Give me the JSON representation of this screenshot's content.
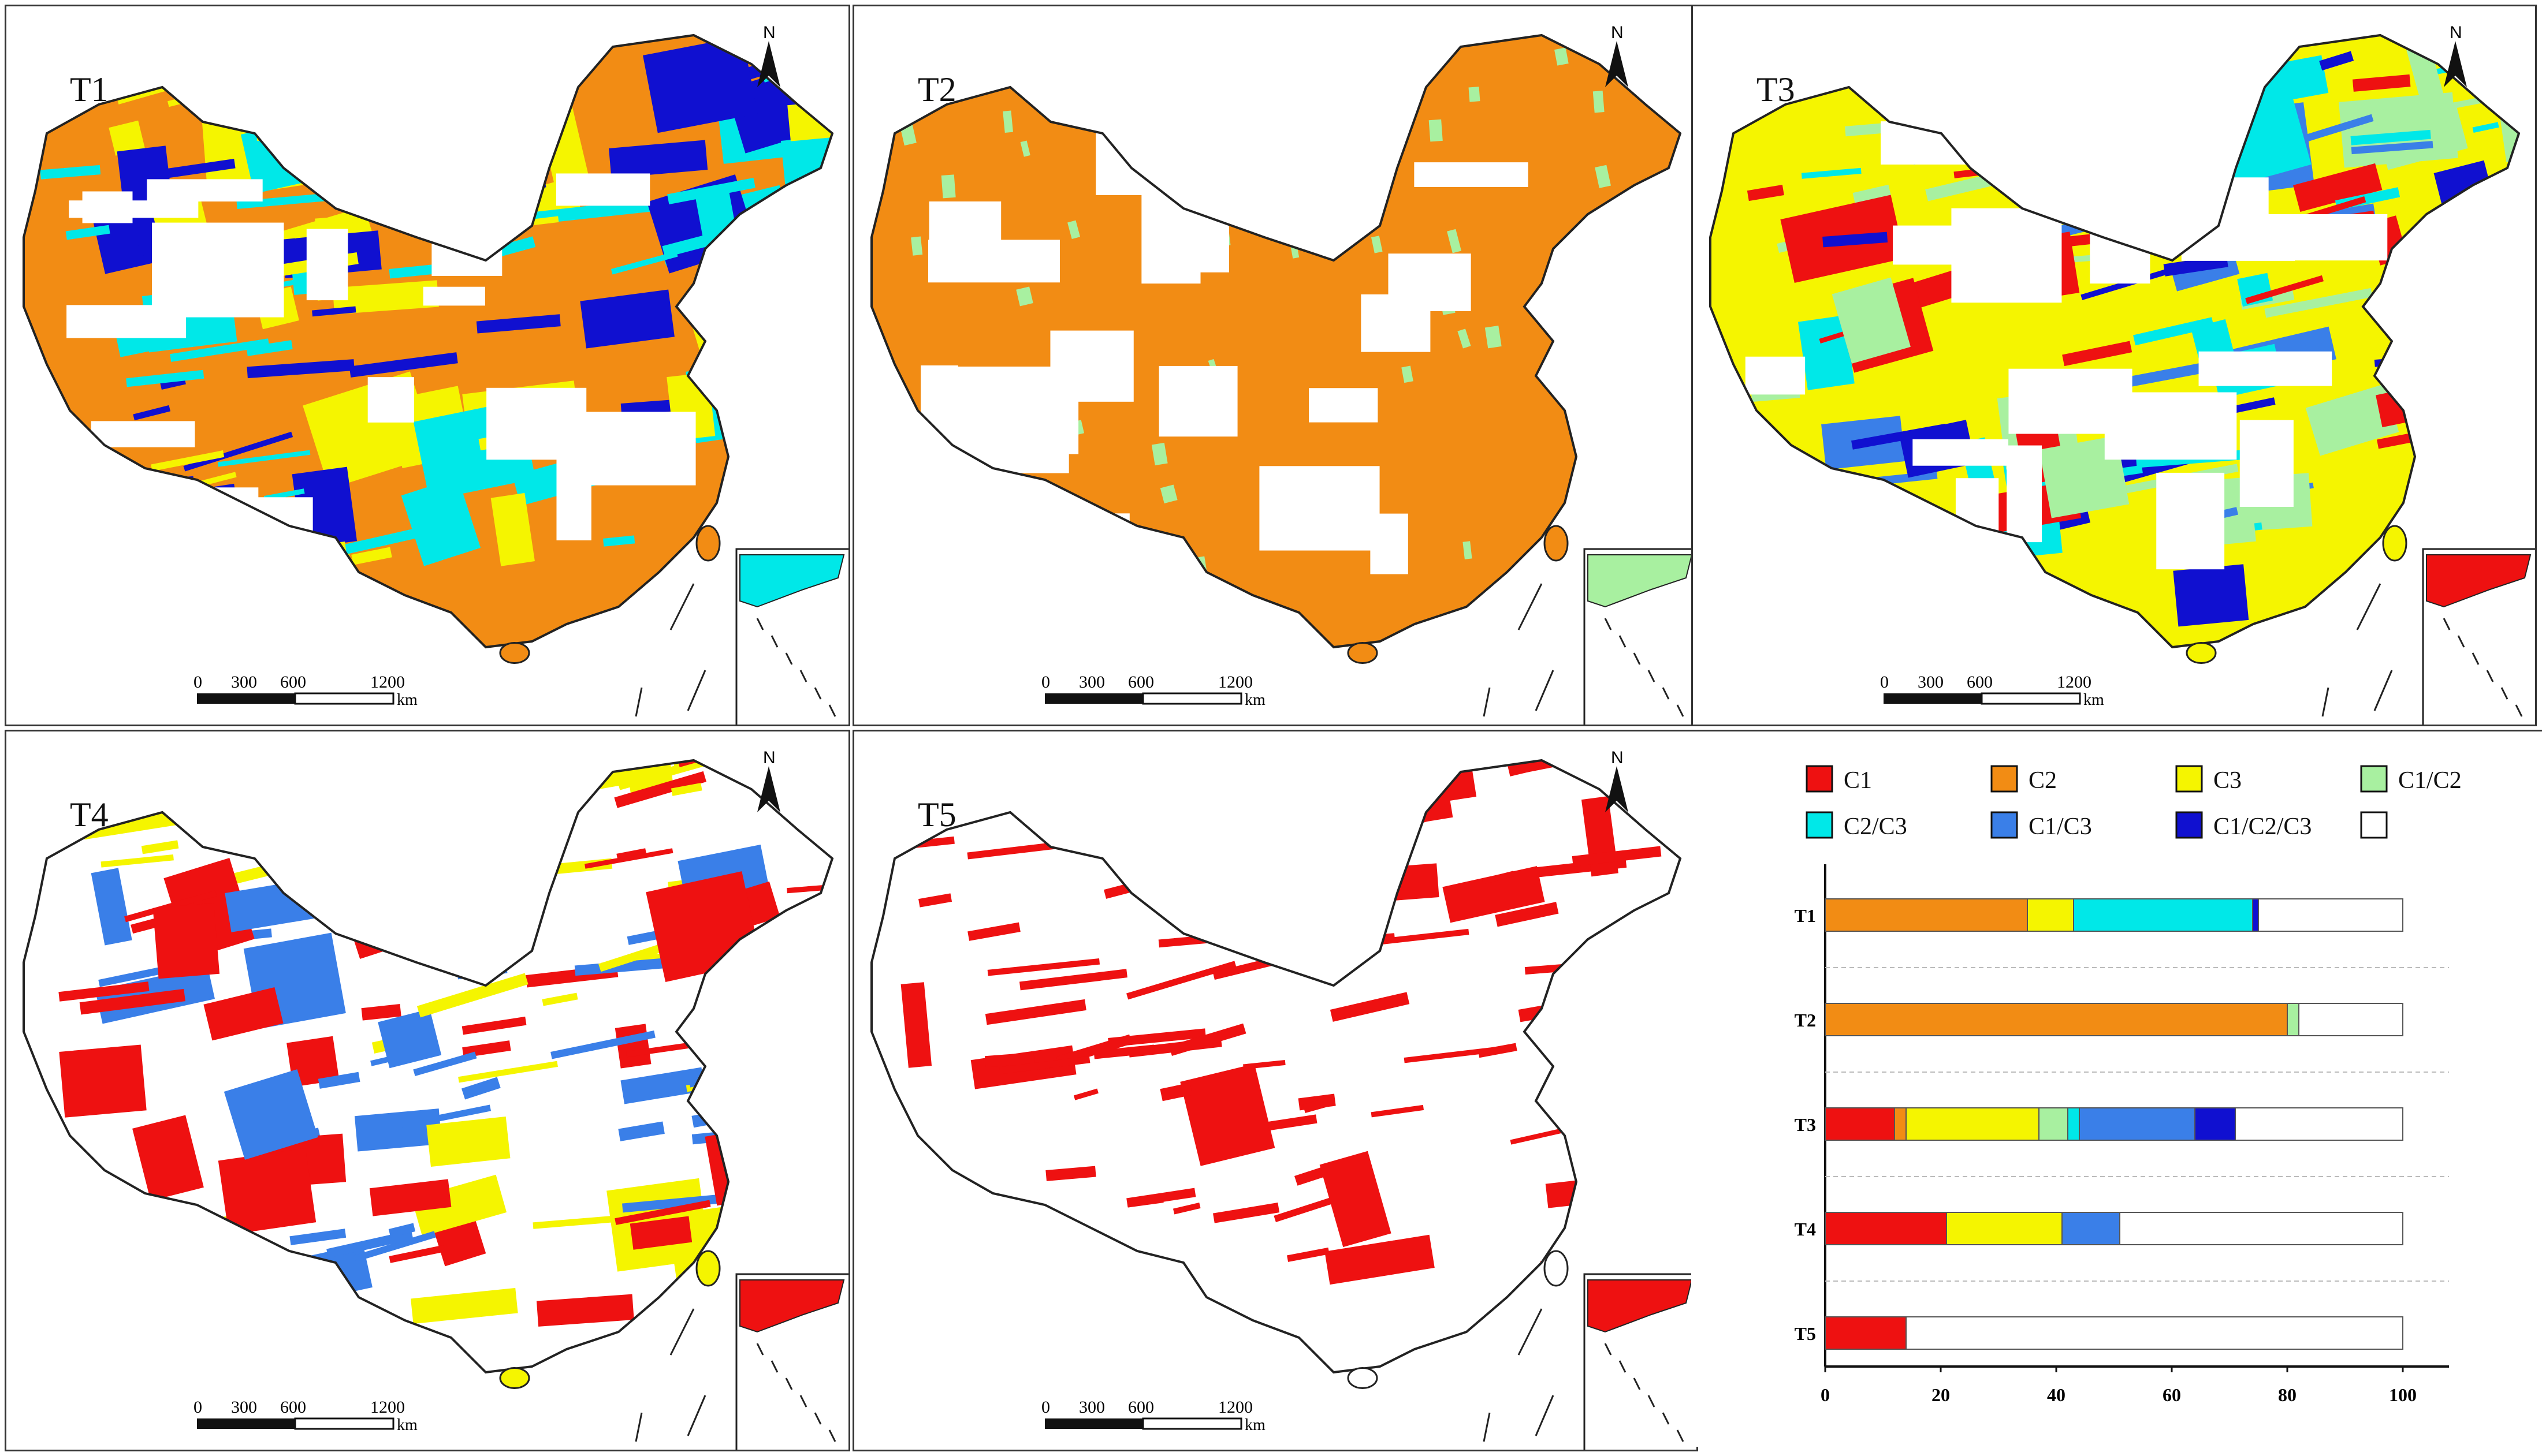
{
  "panels": [
    {
      "id": "T1",
      "title": "T1",
      "fill": "#f28c14",
      "overlay": [
        "#00e8e8",
        "#f5f500",
        "#1010d0"
      ],
      "col": 0,
      "row": 0
    },
    {
      "id": "T2",
      "title": "T2",
      "fill": "#f28c14",
      "overlay": [
        "#a8f0a0"
      ],
      "col": 1,
      "row": 0
    },
    {
      "id": "T3",
      "title": "T3",
      "fill": "#f5f500",
      "overlay": [
        "#ee1111",
        "#3a7fe8",
        "#1010d0",
        "#a8f0a0",
        "#00e8e8"
      ],
      "col": 2,
      "row": 0
    },
    {
      "id": "T4",
      "title": "T4",
      "fill": "#ffffff",
      "overlay": [
        "#ee1111",
        "#f5f500",
        "#3a7fe8"
      ],
      "col": 0,
      "row": 1
    },
    {
      "id": "T5",
      "title": "T5",
      "fill": "#ffffff",
      "overlay": [
        "#ee1111"
      ],
      "col": 1,
      "row": 1
    }
  ],
  "scalebar": {
    "labels": [
      "0",
      "300",
      "600",
      "1200"
    ],
    "unit": "km"
  },
  "north": "N",
  "colors": {
    "C1": "#ee1111",
    "C2": "#f28c14",
    "C3": "#f5f500",
    "C1/C2": "#a8f0a0",
    "C2/C3": "#00e8e8",
    "C1/C3": "#3a7fe8",
    "C1/C2/C3": "#1010d0",
    "none": "#ffffff"
  },
  "chart_data": {
    "type": "bar",
    "stacked": true,
    "orientation": "horizontal",
    "legend": [
      {
        "label": "C1",
        "color": "#ee1111"
      },
      {
        "label": "C2",
        "color": "#f28c14"
      },
      {
        "label": "C3",
        "color": "#f5f500"
      },
      {
        "label": "C1/C2",
        "color": "#a8f0a0"
      },
      {
        "label": "C2/C3",
        "color": "#00e8e8"
      },
      {
        "label": "C1/C3",
        "color": "#3a7fe8"
      },
      {
        "label": "C1/C2/C3",
        "color": "#1010d0"
      },
      {
        "label": "",
        "color": "#ffffff"
      }
    ],
    "categories": [
      "T1",
      "T2",
      "T3",
      "T4",
      "T5"
    ],
    "series": [
      {
        "name": "C1",
        "values": [
          0,
          0,
          12,
          21,
          14
        ]
      },
      {
        "name": "C2",
        "values": [
          35,
          80,
          2,
          0,
          0
        ]
      },
      {
        "name": "C3",
        "values": [
          8,
          0,
          23,
          20,
          0
        ]
      },
      {
        "name": "C1/C2",
        "values": [
          0,
          2,
          5,
          0,
          0
        ]
      },
      {
        "name": "C2/C3",
        "values": [
          31,
          0,
          2,
          0,
          0
        ]
      },
      {
        "name": "C1/C3",
        "values": [
          0,
          0,
          20,
          10,
          0
        ]
      },
      {
        "name": "C1/C2/C3",
        "values": [
          1,
          0,
          7,
          0,
          0
        ]
      },
      {
        "name": "",
        "values": [
          25,
          18,
          29,
          49,
          86
        ]
      }
    ],
    "xticks": [
      "0",
      "20",
      "40",
      "60",
      "80",
      "100"
    ],
    "xlim": [
      0,
      100
    ]
  }
}
